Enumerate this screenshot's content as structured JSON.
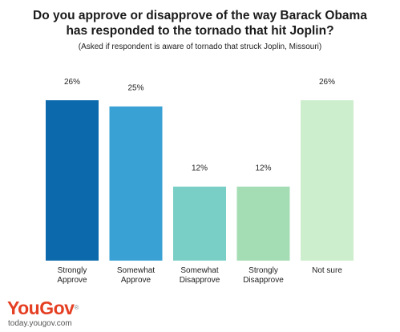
{
  "header": {
    "title_line1": "Do you approve or disapprove of the way Barack Obama",
    "title_line2": "has responded to the tornado that hit Joplin?",
    "subtitle": "(Asked if respondent is aware of tornado that struck Joplin, Missouri)"
  },
  "footer": {
    "brand": "YouGov",
    "site": "today.yougov.com"
  },
  "chart_data": {
    "type": "bar",
    "categories": [
      [
        "Strongly",
        "Approve"
      ],
      [
        "Somewhat",
        "Approve"
      ],
      [
        "Somewhat",
        "Disapprove"
      ],
      [
        "Strongly",
        "Disapprove"
      ],
      [
        "Not sure"
      ]
    ],
    "values": [
      26,
      25,
      12,
      12,
      26
    ],
    "value_labels": [
      "26%",
      "25%",
      "12%",
      "12%",
      "26%"
    ],
    "colors": [
      "#0c6aac",
      "#3aa1d4",
      "#79cfc6",
      "#a4dcb4",
      "#cdeecc"
    ],
    "ylim": [
      0,
      26
    ],
    "grid": false,
    "legend": "none"
  }
}
